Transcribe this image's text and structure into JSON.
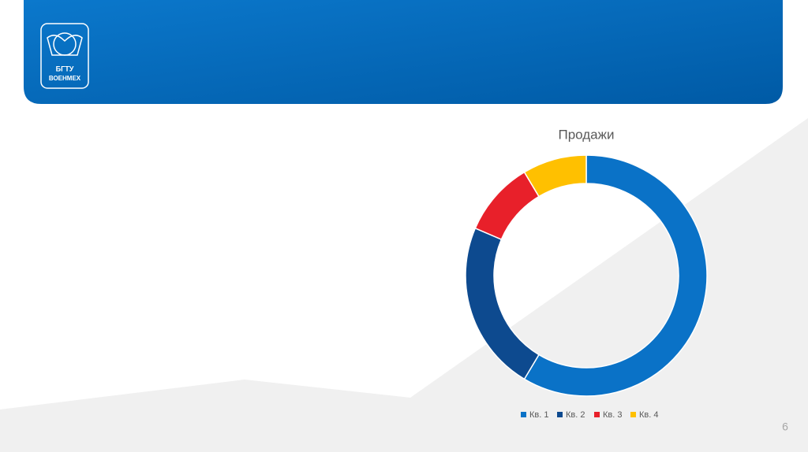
{
  "logo": {
    "line1": "БГТУ",
    "line2": "ВОЕНМЕХ"
  },
  "slide_number": "6",
  "chart_data": {
    "type": "donut",
    "title": "Продажи",
    "categories": [
      "Кв. 1",
      "Кв. 2",
      "Кв. 3",
      "Кв. 4"
    ],
    "values": [
      8.2,
      3.2,
      1.4,
      1.2
    ],
    "colors": [
      "#0a72c7",
      "#0d4a8f",
      "#e8202a",
      "#ffc000"
    ],
    "legend": "bottom"
  }
}
